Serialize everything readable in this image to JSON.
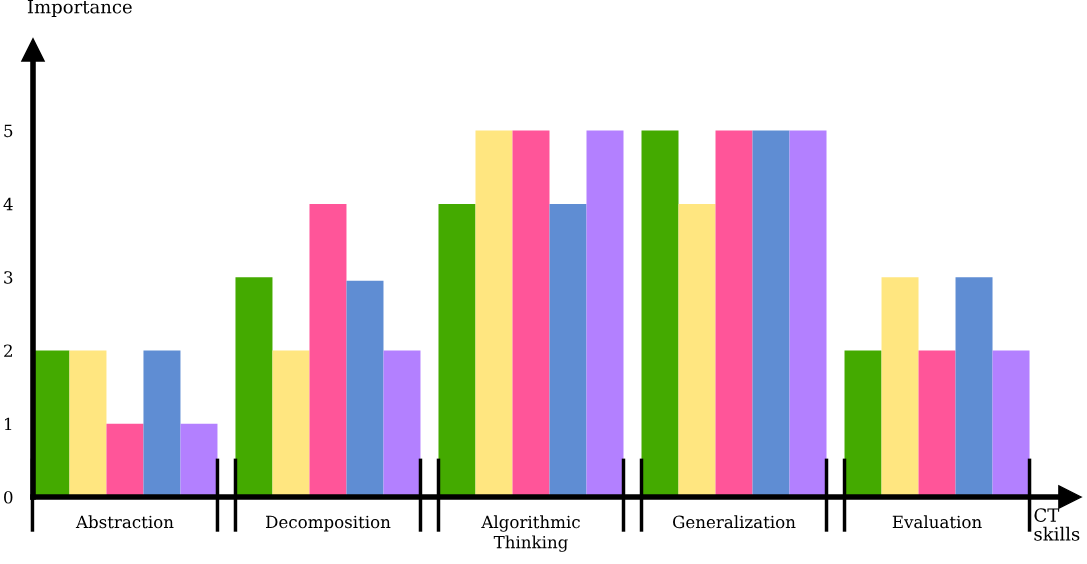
{
  "chart_data": {
    "type": "bar",
    "ylabel": "Importance",
    "xlabel": "CT\nskills",
    "categories": [
      "Abstraction",
      "Decomposition",
      "Algorithmic\nThinking",
      "Generalization",
      "Evaluation"
    ],
    "series": [
      {
        "color": "#44aa00",
        "values": [
          2,
          3,
          4,
          5,
          2
        ]
      },
      {
        "color": "#ffe680",
        "values": [
          2,
          2,
          5,
          4,
          3
        ]
      },
      {
        "color": "#ff5599",
        "values": [
          1,
          4,
          5,
          5,
          2
        ]
      },
      {
        "color": "#5f8dd3",
        "values": [
          2,
          2.95,
          4,
          5,
          3
        ]
      },
      {
        "color": "#b380ff",
        "values": [
          1,
          2,
          5,
          5,
          2
        ]
      }
    ],
    "ylim": [
      0,
      6.1
    ],
    "yticks": [
      0,
      1,
      2,
      3,
      4,
      5
    ],
    "grid": false,
    "legend": false
  }
}
